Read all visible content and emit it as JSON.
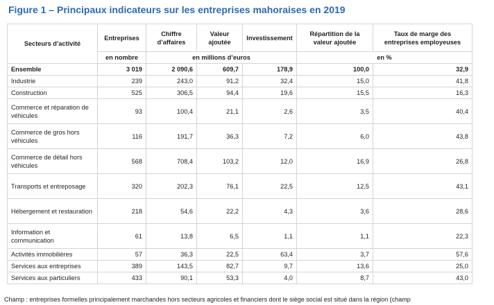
{
  "figure_title": "Figure 1 – Principaux indicateurs sur les entreprises mahoraises en 2019",
  "table": {
    "headers": {
      "sector": "Secteurs d’activité",
      "entreprises": "Entreprises",
      "chiffre": "Chiffre d’affaires",
      "valeur": "Valeur ajoutée",
      "investissement": "Investissement",
      "repartition": "Répartition de la valeur ajoutée",
      "taux": "Taux de marge des entreprises employeuses"
    },
    "units": {
      "nombre": "en nombre",
      "millions": "en millions d’euros",
      "pct": "en %"
    },
    "rows": [
      {
        "label": "Ensemble",
        "values": [
          "3 019",
          "2 090,6",
          "609,7",
          "178,9",
          "100,0",
          "32,9"
        ]
      },
      {
        "label": "Industrie",
        "values": [
          "239",
          "243,0",
          "91,2",
          "32,4",
          "15,0",
          "41,8"
        ]
      },
      {
        "label": "Construction",
        "values": [
          "525",
          "306,5",
          "94,4",
          "19,6",
          "15,5",
          "16,3"
        ]
      },
      {
        "label": "Commerce et réparation de véhicules",
        "values": [
          "93",
          "100,4",
          "21,1",
          "2,6",
          "3,5",
          "40,4"
        ]
      },
      {
        "label": "Commerce de gros hors véhicules",
        "values": [
          "116",
          "191,7",
          "36,3",
          "7,2",
          "6,0",
          "43,8"
        ]
      },
      {
        "label": "Commerce de détail hors véhicules",
        "values": [
          "568",
          "708,4",
          "103,2",
          "12,0",
          "16,9",
          "26,8"
        ]
      },
      {
        "label": "Transports et entreposage",
        "values": [
          "320",
          "202,3",
          "76,1",
          "22,5",
          "12,5",
          "43,1"
        ]
      },
      {
        "label": "Hébergement et restauration",
        "values": [
          "218",
          "54,6",
          "22,2",
          "4,3",
          "3,6",
          "28,6"
        ]
      },
      {
        "label": "Information et communication",
        "values": [
          "61",
          "13,8",
          "6,5",
          "1,1",
          "1,1",
          "22,3"
        ]
      },
      {
        "label": "Activités immobilières",
        "values": [
          "57",
          "36,3",
          "22,5",
          "63,4",
          "3,7",
          "57,6"
        ]
      },
      {
        "label": "Services aux entreprises",
        "values": [
          "389",
          "143,5",
          "82,7",
          "9,7",
          "13,6",
          "25,0"
        ]
      },
      {
        "label": "Services aux particuliers",
        "values": [
          "433",
          "90,1",
          "53,3",
          "4,0",
          "8,7",
          "43,0"
        ]
      }
    ]
  },
  "footnote": "Champ : entreprises formelles principalement marchandes hors secteurs agricoles et financiers dont le siège social est situé dans la région (champ",
  "colors": {
    "title": "#2a6ab3",
    "grid": "#d4d4d4"
  }
}
